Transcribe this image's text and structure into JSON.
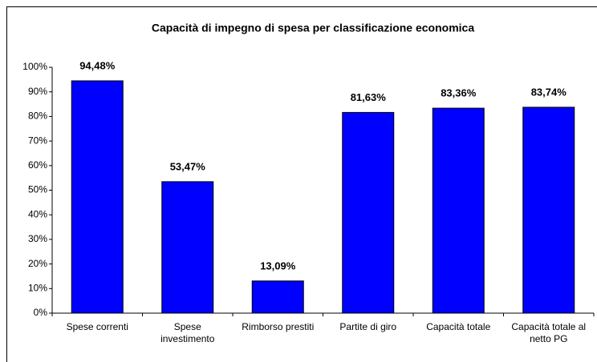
{
  "chart_data": {
    "type": "bar",
    "title": "Capacità di impegno di spesa per classificazione economica",
    "categories": [
      "Spese correnti",
      "Spese investimento",
      "Rimborso prestiti",
      "Partite di giro",
      "Capacità totale",
      "Capacità totale al netto PG"
    ],
    "values": [
      94.48,
      53.47,
      13.09,
      81.63,
      83.36,
      83.74
    ],
    "value_labels": [
      "94,48%",
      "53,47%",
      "13,09%",
      "81,63%",
      "83,36%",
      "83,74%"
    ],
    "color": "#0000ff",
    "ylim": [
      0,
      100
    ],
    "yticks": [
      {
        "value": 0,
        "label": "0%"
      },
      {
        "value": 10,
        "label": "10%"
      },
      {
        "value": 20,
        "label": "20%"
      },
      {
        "value": 30,
        "label": "30%"
      },
      {
        "value": 40,
        "label": "40%"
      },
      {
        "value": 50,
        "label": "50%"
      },
      {
        "value": 60,
        "label": "60%"
      },
      {
        "value": 70,
        "label": "70%"
      },
      {
        "value": 80,
        "label": "80%"
      },
      {
        "value": 90,
        "label": "90%"
      },
      {
        "value": 100,
        "label": "100%"
      }
    ],
    "grid": false
  }
}
